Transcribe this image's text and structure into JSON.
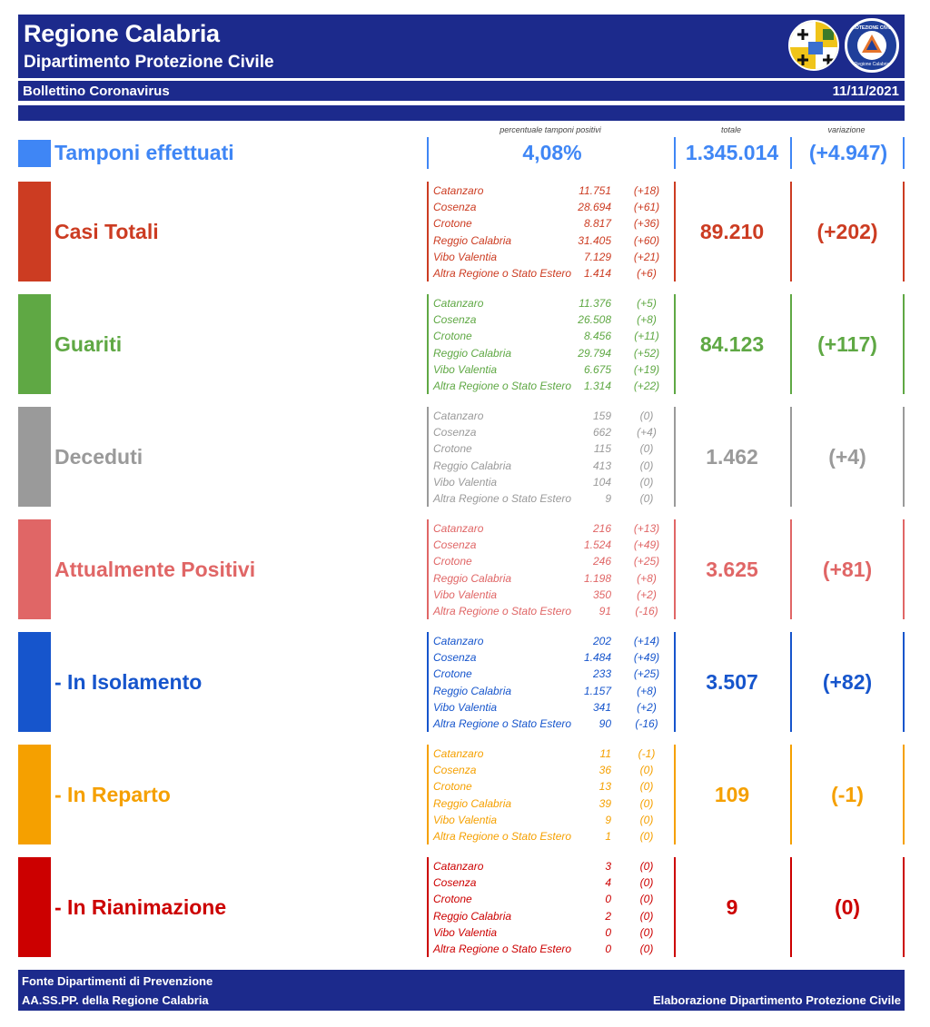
{
  "header": {
    "title": "Regione Calabria",
    "subtitle": "Dipartimento Protezione Civile",
    "bulletin": "Bollettino Coronavirus",
    "date": "11/11/2021",
    "logo_text": "PROTEZIONE CIVILE Regione Calabria"
  },
  "columns": {
    "pct": "percentuale tamponi positivi",
    "total": "totale",
    "variation": "variazione"
  },
  "tamponi": {
    "label": "Tamponi effettuati",
    "pct": "4,08%",
    "total": "1.345.014",
    "variation": "(+4.947)",
    "color": "#3f86f5"
  },
  "sections": [
    {
      "label": "Casi Totali",
      "color": "#cc3c22",
      "total": "89.210",
      "variation": "(+202)",
      "rows": [
        {
          "name": "Catanzaro",
          "value": "11.751",
          "delta": "(+18)"
        },
        {
          "name": "Cosenza",
          "value": "28.694",
          "delta": "(+61)"
        },
        {
          "name": "Crotone",
          "value": "8.817",
          "delta": "(+36)"
        },
        {
          "name": "Reggio Calabria",
          "value": "31.405",
          "delta": "(+60)"
        },
        {
          "name": "Vibo Valentia",
          "value": "7.129",
          "delta": "(+21)"
        },
        {
          "name": "Altra Regione o Stato Estero",
          "value": "1.414",
          "delta": "(+6)"
        }
      ]
    },
    {
      "label": "Guariti",
      "color": "#5fa844",
      "total": "84.123",
      "variation": "(+117)",
      "rows": [
        {
          "name": "Catanzaro",
          "value": "11.376",
          "delta": "(+5)"
        },
        {
          "name": "Cosenza",
          "value": "26.508",
          "delta": "(+8)"
        },
        {
          "name": "Crotone",
          "value": "8.456",
          "delta": "(+11)"
        },
        {
          "name": "Reggio Calabria",
          "value": "29.794",
          "delta": "(+52)"
        },
        {
          "name": "Vibo Valentia",
          "value": "6.675",
          "delta": "(+19)"
        },
        {
          "name": "Altra Regione o Stato Estero",
          "value": "1.314",
          "delta": "(+22)"
        }
      ]
    },
    {
      "label": "Deceduti",
      "color": "#9a9a9a",
      "total": "1.462",
      "variation": "(+4)",
      "rows": [
        {
          "name": "Catanzaro",
          "value": "159",
          "delta": "(0)"
        },
        {
          "name": "Cosenza",
          "value": "662",
          "delta": "(+4)"
        },
        {
          "name": "Crotone",
          "value": "115",
          "delta": "(0)"
        },
        {
          "name": "Reggio Calabria",
          "value": "413",
          "delta": "(0)"
        },
        {
          "name": "Vibo Valentia",
          "value": "104",
          "delta": "(0)"
        },
        {
          "name": "Altra Regione o Stato Estero",
          "value": "9",
          "delta": "(0)"
        }
      ]
    },
    {
      "label": "Attualmente Positivi",
      "color": "#e06666",
      "total": "3.625",
      "variation": "(+81)",
      "rows": [
        {
          "name": "Catanzaro",
          "value": "216",
          "delta": "(+13)"
        },
        {
          "name": "Cosenza",
          "value": "1.524",
          "delta": "(+49)"
        },
        {
          "name": "Crotone",
          "value": "246",
          "delta": "(+25)"
        },
        {
          "name": "Reggio Calabria",
          "value": "1.198",
          "delta": "(+8)"
        },
        {
          "name": "Vibo Valentia",
          "value": "350",
          "delta": "(+2)"
        },
        {
          "name": "Altra Regione o Stato Estero",
          "value": "91",
          "delta": "(-16)"
        }
      ]
    },
    {
      "label": " - In Isolamento",
      "color": "#1655cc",
      "total": "3.507",
      "variation": "(+82)",
      "rows": [
        {
          "name": "Catanzaro",
          "value": "202",
          "delta": "(+14)"
        },
        {
          "name": "Cosenza",
          "value": "1.484",
          "delta": "(+49)"
        },
        {
          "name": "Crotone",
          "value": "233",
          "delta": "(+25)"
        },
        {
          "name": "Reggio Calabria",
          "value": "1.157",
          "delta": "(+8)"
        },
        {
          "name": "Vibo Valentia",
          "value": "341",
          "delta": "(+2)"
        },
        {
          "name": "Altra Regione o Stato Estero",
          "value": "90",
          "delta": "(-16)"
        }
      ]
    },
    {
      "label": " - In Reparto",
      "color": "#f5a000",
      "total": "109",
      "variation": "(-1)",
      "rows": [
        {
          "name": "Catanzaro",
          "value": "11",
          "delta": "(-1)"
        },
        {
          "name": "Cosenza",
          "value": "36",
          "delta": "(0)"
        },
        {
          "name": "Crotone",
          "value": "13",
          "delta": "(0)"
        },
        {
          "name": "Reggio Calabria",
          "value": "39",
          "delta": "(0)"
        },
        {
          "name": "Vibo Valentia",
          "value": "9",
          "delta": "(0)"
        },
        {
          "name": "Altra Regione o Stato Estero",
          "value": "1",
          "delta": "(0)"
        }
      ]
    },
    {
      "label": " - In Rianimazione",
      "color": "#cc0000",
      "total": "9",
      "variation": "(0)",
      "rows": [
        {
          "name": "Catanzaro",
          "value": "3",
          "delta": "(0)"
        },
        {
          "name": "Cosenza",
          "value": "4",
          "delta": "(0)"
        },
        {
          "name": "Crotone",
          "value": "0",
          "delta": "(0)"
        },
        {
          "name": "Reggio Calabria",
          "value": "2",
          "delta": "(0)"
        },
        {
          "name": "Vibo Valentia",
          "value": "0",
          "delta": "(0)"
        },
        {
          "name": "Altra Regione o Stato Estero",
          "value": "0",
          "delta": "(0)"
        }
      ]
    }
  ],
  "footer": {
    "line1": "Fonte Dipartimenti di Prevenzione",
    "line2": "AA.SS.PP.  della Regione Calabria",
    "right": "Elaborazione Dipartimento Protezione Civile"
  }
}
